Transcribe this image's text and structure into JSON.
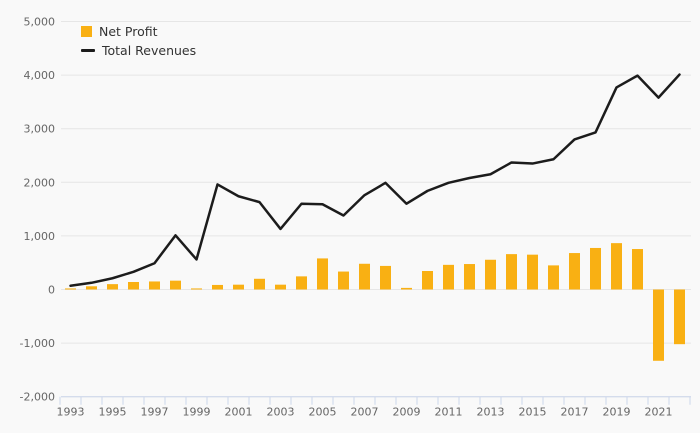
{
  "legend": {
    "net_profit": "Net Profit",
    "total_revenues": "Total Revenues"
  },
  "colors": {
    "bar": "#F9B013",
    "line": "#1C1C1C",
    "grid": "#E6E6E6",
    "axis": "#CCD6EB",
    "axis_label": "#666666",
    "legend_text": "#333333",
    "background": "#F9F9F9"
  },
  "chart_data": {
    "type": "bar+line",
    "x": [
      1993,
      1994,
      1995,
      1996,
      1997,
      1998,
      1999,
      2000,
      2001,
      2002,
      2003,
      2004,
      2005,
      2006,
      2007,
      2008,
      2009,
      2010,
      2011,
      2012,
      2013,
      2014,
      2015,
      2016,
      2017,
      2018,
      2019,
      2020,
      2021,
      2022
    ],
    "series": [
      {
        "name": "Net Profit",
        "type": "bar",
        "color": "#F9B013",
        "values": [
          20,
          60,
          100,
          140,
          150,
          165,
          20,
          85,
          90,
          200,
          90,
          245,
          580,
          335,
          480,
          440,
          30,
          345,
          460,
          475,
          555,
          660,
          650,
          450,
          680,
          775,
          865,
          755,
          -1330,
          -1020
        ]
      },
      {
        "name": "Total Revenues",
        "type": "line",
        "color": "#1C1C1C",
        "values": [
          70,
          125,
          210,
          330,
          490,
          1010,
          560,
          1960,
          1740,
          1630,
          1130,
          1600,
          1590,
          1380,
          1760,
          1990,
          1600,
          1840,
          1990,
          2080,
          2150,
          2370,
          2350,
          2430,
          2800,
          2930,
          3770,
          3990,
          3580,
          4010
        ]
      }
    ],
    "ylim": [
      -2000,
      5000
    ],
    "ytick_interval": 1000,
    "yticks": [
      5000,
      4000,
      3000,
      2000,
      1000,
      0,
      -1000,
      -2000
    ],
    "ytick_labels": [
      "5,000",
      "4,000",
      "3,000",
      "2,000",
      "1,000",
      "0",
      "-1,000",
      "-2,000"
    ],
    "xtick_labels": [
      "1993",
      "1995",
      "1997",
      "1999",
      "2001",
      "2003",
      "2005",
      "2007",
      "2009",
      "2011",
      "2013",
      "2015",
      "2017",
      "2019",
      "2021"
    ],
    "grid": true,
    "legend_position": "top-left"
  }
}
